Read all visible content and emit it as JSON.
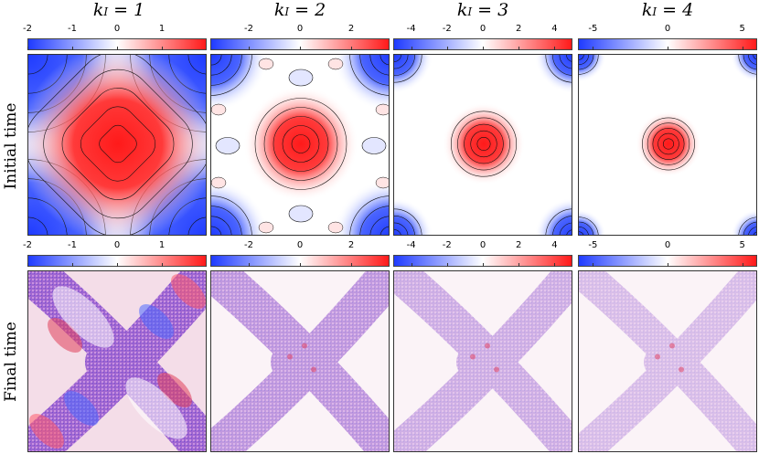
{
  "row_labels": {
    "initial": "Initial time",
    "final": "Final time"
  },
  "columns": [
    {
      "title_main": "k",
      "title_sub": "I",
      "title_rest": " = 1"
    },
    {
      "title_main": "k",
      "title_sub": "I",
      "title_rest": " = 2"
    },
    {
      "title_main": "k",
      "title_sub": "I",
      "title_rest": " = 3"
    },
    {
      "title_main": "k",
      "title_sub": "I",
      "title_rest": " = 4"
    }
  ],
  "colors": {
    "negative": "#1f3bff",
    "zero": "#ffffff",
    "positive": "#ff1a1a",
    "mixed": "#9b5fd0"
  },
  "chart_data": [
    {
      "type": "heatmap",
      "row": "Initial time",
      "column": "k_I = 1",
      "colorbar_ticks": [
        "-2",
        "-1",
        "0",
        "1"
      ],
      "colorbar_values": [
        -2,
        -1,
        0,
        1
      ],
      "clim": [
        -2,
        2
      ],
      "pattern": "single large central positive vortex, negative corners, contour lines"
    },
    {
      "type": "heatmap",
      "row": "Initial time",
      "column": "k_I = 2",
      "colorbar_ticks": [
        "-2",
        "0",
        "2"
      ],
      "colorbar_values": [
        -2,
        0,
        2
      ],
      "clim": [
        -3.5,
        3.5
      ],
      "pattern": "central positive vortex, negative corners, weak lobes"
    },
    {
      "type": "heatmap",
      "row": "Initial time",
      "column": "k_I = 3",
      "colorbar_ticks": [
        "-4",
        "-2",
        "0",
        "2",
        "4"
      ],
      "colorbar_values": [
        -4,
        -2,
        0,
        2,
        4
      ],
      "clim": [
        -5,
        5
      ],
      "pattern": "small central positive vortex, negative corners"
    },
    {
      "type": "heatmap",
      "row": "Initial time",
      "column": "k_I = 4",
      "colorbar_ticks": [
        "-5",
        "0",
        "5"
      ],
      "colorbar_values": [
        -5,
        0,
        5
      ],
      "clim": [
        -6,
        6
      ],
      "pattern": "small central positive vortex, negative corners"
    },
    {
      "type": "heatmap",
      "row": "Final time",
      "column": "k_I = 1",
      "colorbar_ticks": [
        "-2",
        "-1",
        "0",
        "1"
      ],
      "colorbar_values": [
        -2,
        -1,
        0,
        1
      ],
      "clim": [
        -2,
        2
      ],
      "pattern": "mixed X-shaped filament region"
    },
    {
      "type": "heatmap",
      "row": "Final time",
      "column": "k_I = 2",
      "colorbar_ticks": [
        "-2",
        "0",
        "2"
      ],
      "colorbar_values": [
        -2,
        0,
        2
      ],
      "clim": [
        -3.5,
        3.5
      ],
      "pattern": "mixed X-shaped filament region"
    },
    {
      "type": "heatmap",
      "row": "Final time",
      "column": "k_I = 3",
      "colorbar_ticks": [
        "-4",
        "-2",
        "0",
        "2",
        "4"
      ],
      "colorbar_values": [
        -4,
        -2,
        0,
        2,
        4
      ],
      "clim": [
        -5,
        5
      ],
      "pattern": "mixed X-shaped filament region"
    },
    {
      "type": "heatmap",
      "row": "Final time",
      "column": "k_I = 4",
      "colorbar_ticks": [
        "-5",
        "0",
        "5"
      ],
      "colorbar_values": [
        -5,
        0,
        5
      ],
      "clim": [
        -6,
        6
      ],
      "pattern": "mixed X-shaped filament region"
    }
  ]
}
